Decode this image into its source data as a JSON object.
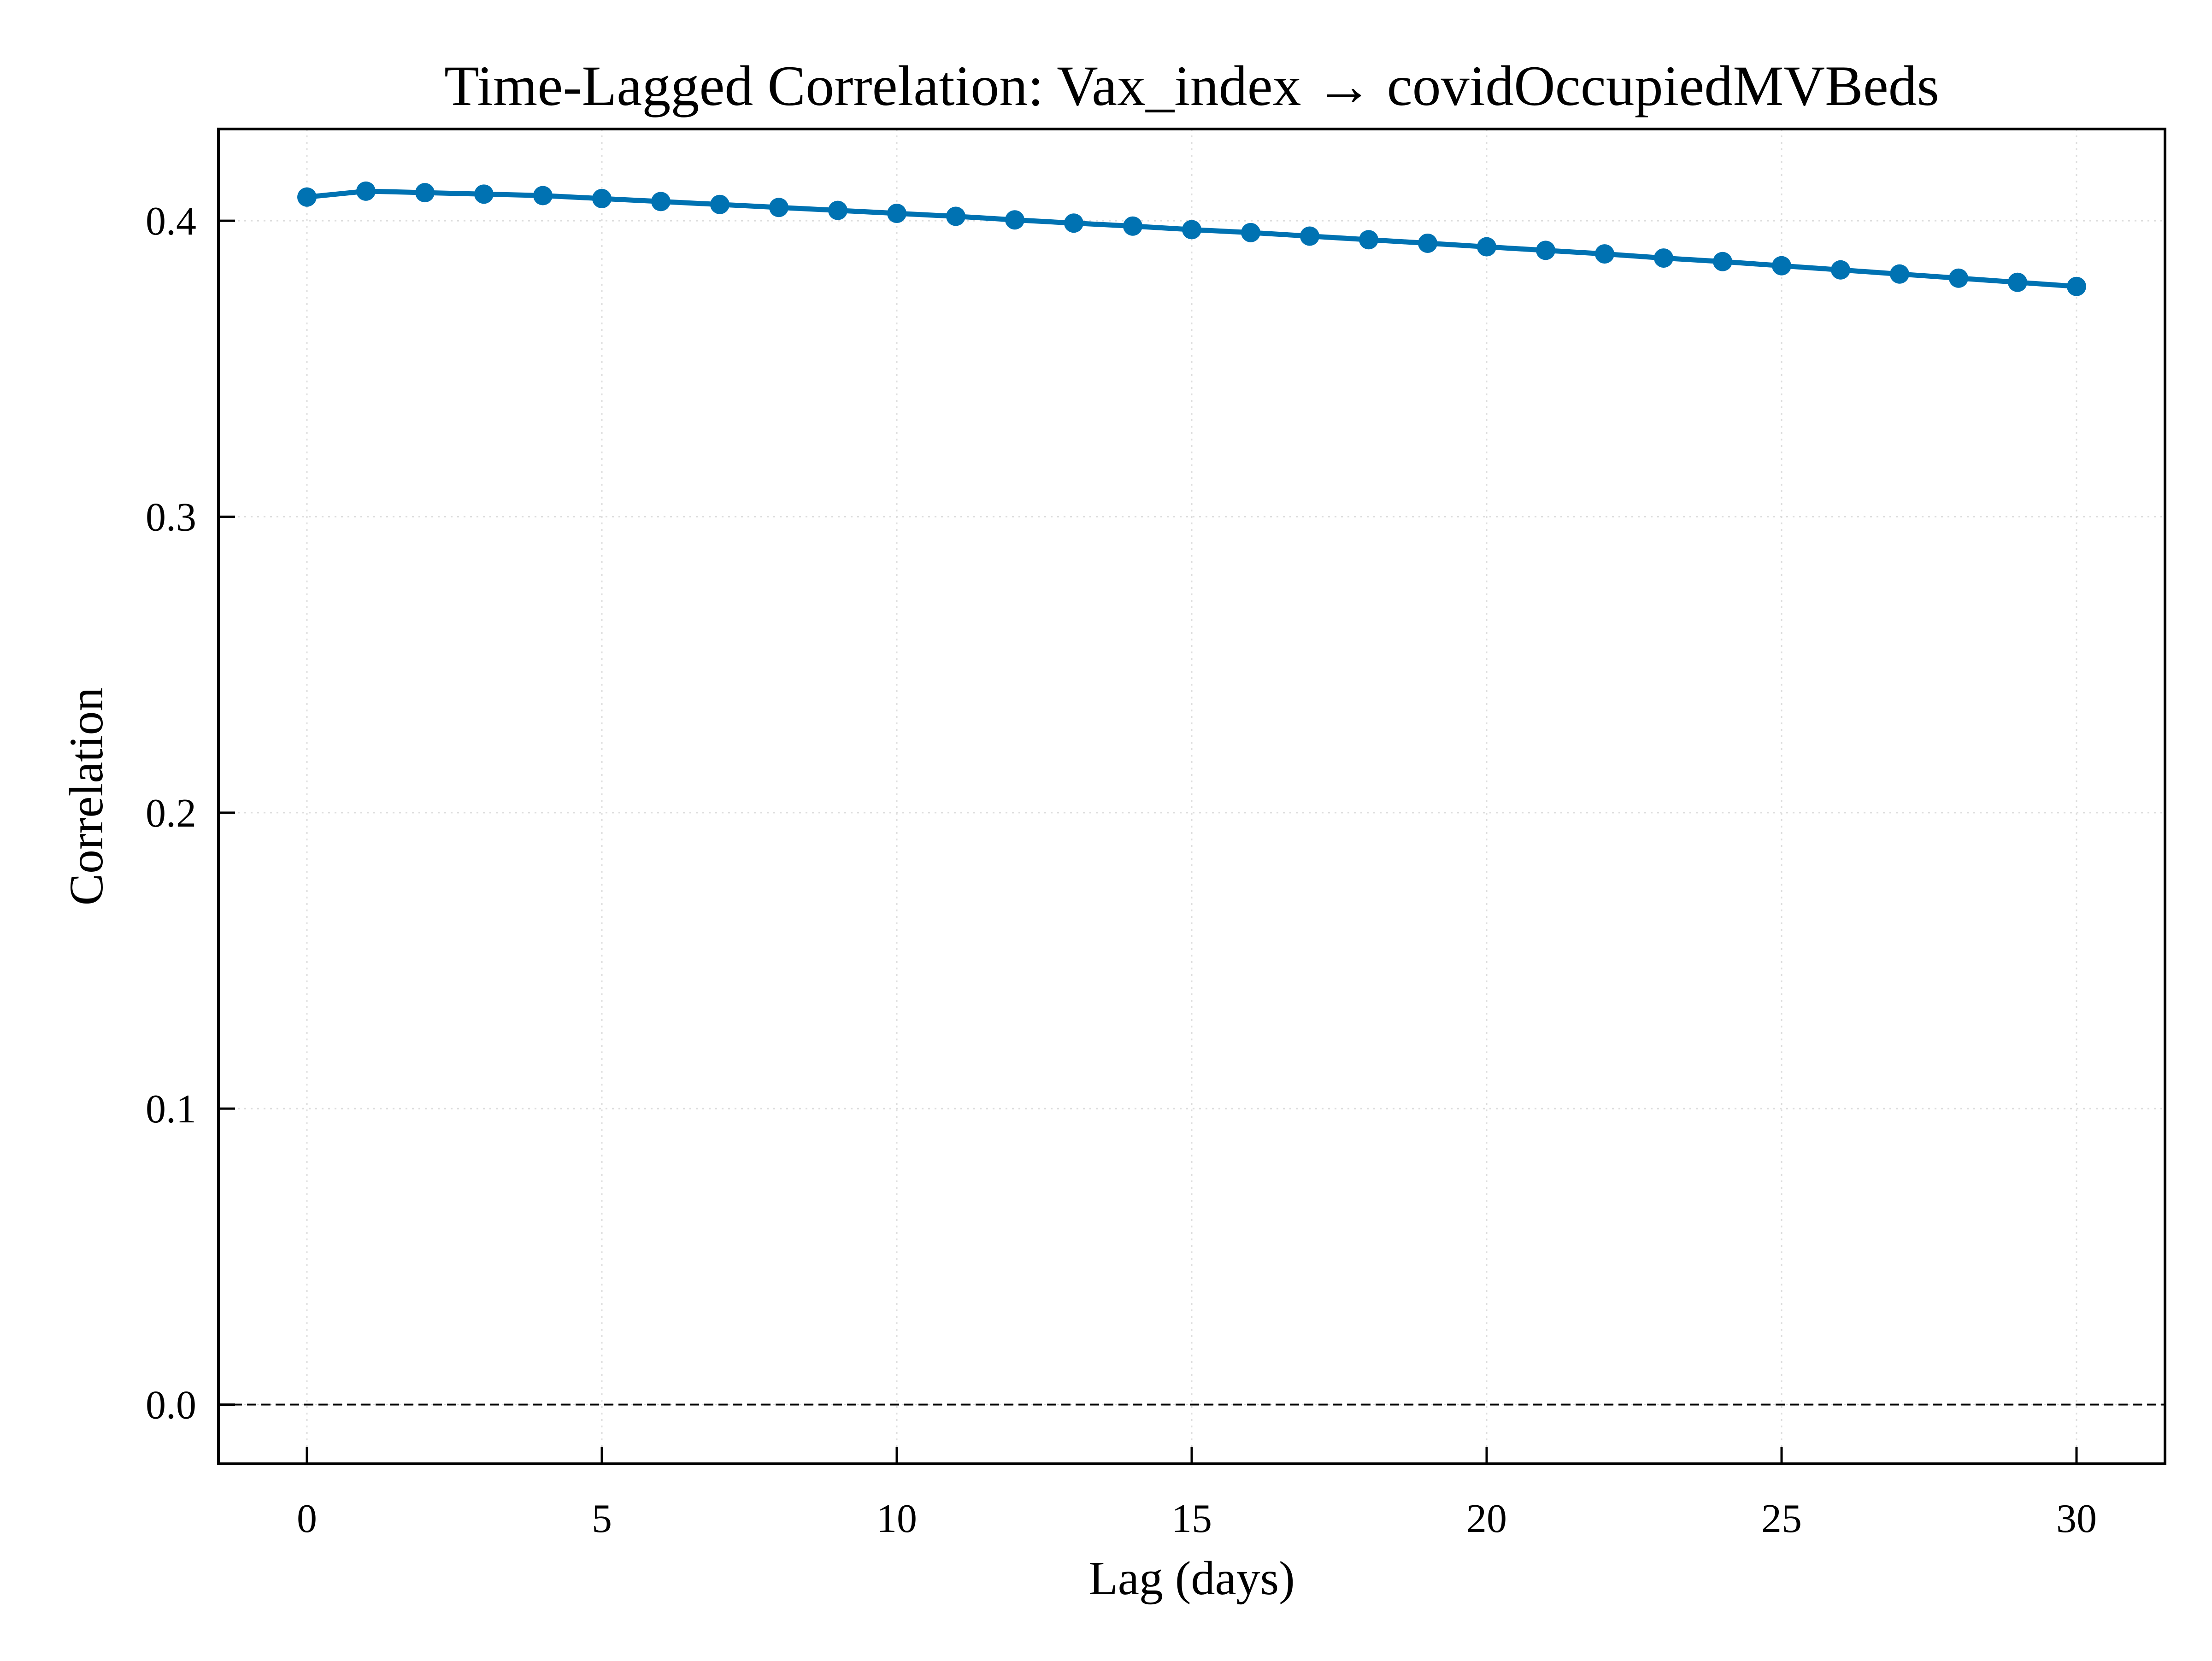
{
  "chart_data": {
    "type": "line",
    "title": "Time-Lagged Correlation: Vax_index → covidOccupiedMVBeds",
    "xlabel": "Lag (days)",
    "ylabel": "Correlation",
    "xlim": [
      -1.5,
      31.5
    ],
    "ylim": [
      -0.02,
      0.431
    ],
    "xticks": [
      0,
      5,
      10,
      15,
      20,
      25,
      30
    ],
    "xtick_labels": [
      "0",
      "5",
      "10",
      "15",
      "20",
      "25",
      "30"
    ],
    "yticks": [
      0.0,
      0.1,
      0.2,
      0.3,
      0.4
    ],
    "ytick_labels": [
      "0.0",
      "0.1",
      "0.2",
      "0.3",
      "0.4"
    ],
    "grid": true,
    "reference_line": {
      "y": 0.0,
      "style": "dashed",
      "color": "#000000"
    },
    "series": [
      {
        "color": "#0072b2",
        "marker": "circle",
        "x": [
          0,
          1,
          2,
          3,
          4,
          5,
          6,
          7,
          8,
          9,
          10,
          11,
          12,
          13,
          14,
          15,
          16,
          17,
          18,
          19,
          20,
          21,
          22,
          23,
          24,
          25,
          26,
          27,
          28,
          29,
          30
        ],
        "values": [
          0.408,
          0.41,
          0.4095,
          0.409,
          0.4085,
          0.4075,
          0.4065,
          0.4055,
          0.4045,
          0.4035,
          0.4025,
          0.4015,
          0.4003,
          0.3992,
          0.3982,
          0.397,
          0.396,
          0.3948,
          0.3936,
          0.3924,
          0.3912,
          0.39,
          0.3888,
          0.3874,
          0.3862,
          0.3848,
          0.3834,
          0.382,
          0.3806,
          0.3792,
          0.3778
        ]
      }
    ]
  }
}
